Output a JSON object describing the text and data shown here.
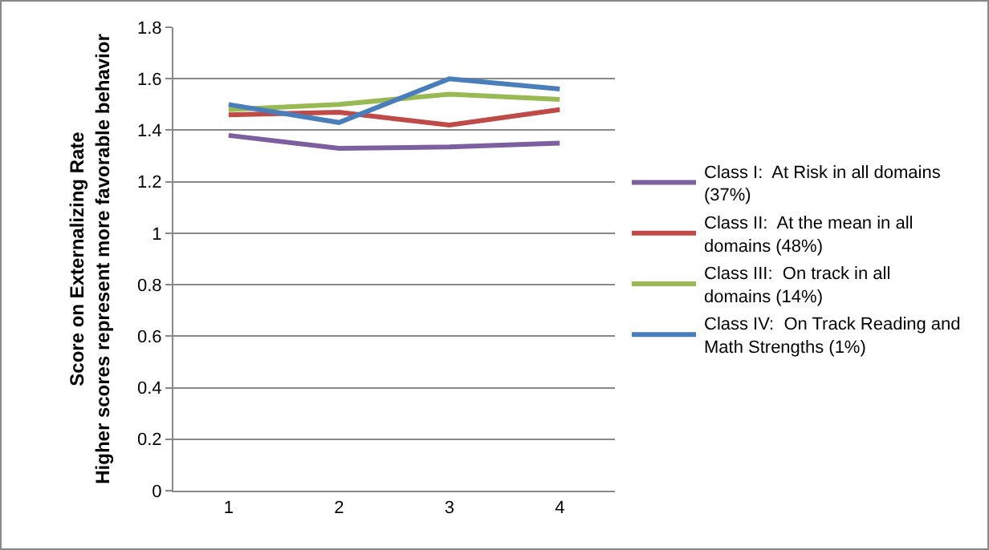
{
  "chart_data": {
    "type": "line",
    "ylabel": "Score on Externalizing Rate\nHigher scores represent more favorable behavior",
    "categories": [
      "1",
      "2",
      "3",
      "4"
    ],
    "series": [
      {
        "name": "Class I:  At Risk in all domains (37%)",
        "color": "#7d5fa0",
        "values": [
          1.38,
          1.33,
          1.335,
          1.35
        ]
      },
      {
        "name": "Class II:  At the mean in all domains (48%)",
        "color": "#be4b48",
        "values": [
          1.46,
          1.47,
          1.42,
          1.48
        ]
      },
      {
        "name": "Class III:  On track in all domains (14%)",
        "color": "#98b954",
        "values": [
          1.48,
          1.5,
          1.54,
          1.52
        ]
      },
      {
        "name": "Class IV:  On Track Reading and Math Strengths (1%)",
        "color": "#4a7ebb",
        "values": [
          1.5,
          1.43,
          1.6,
          1.56
        ]
      }
    ],
    "ylim": [
      0,
      1.8
    ],
    "yticks": [
      0,
      0.2,
      0.4,
      0.6,
      0.8,
      1,
      1.2,
      1.4,
      1.6,
      1.8
    ],
    "grid": "y",
    "legend": "right",
    "marker": "none",
    "line_style": "solid"
  }
}
